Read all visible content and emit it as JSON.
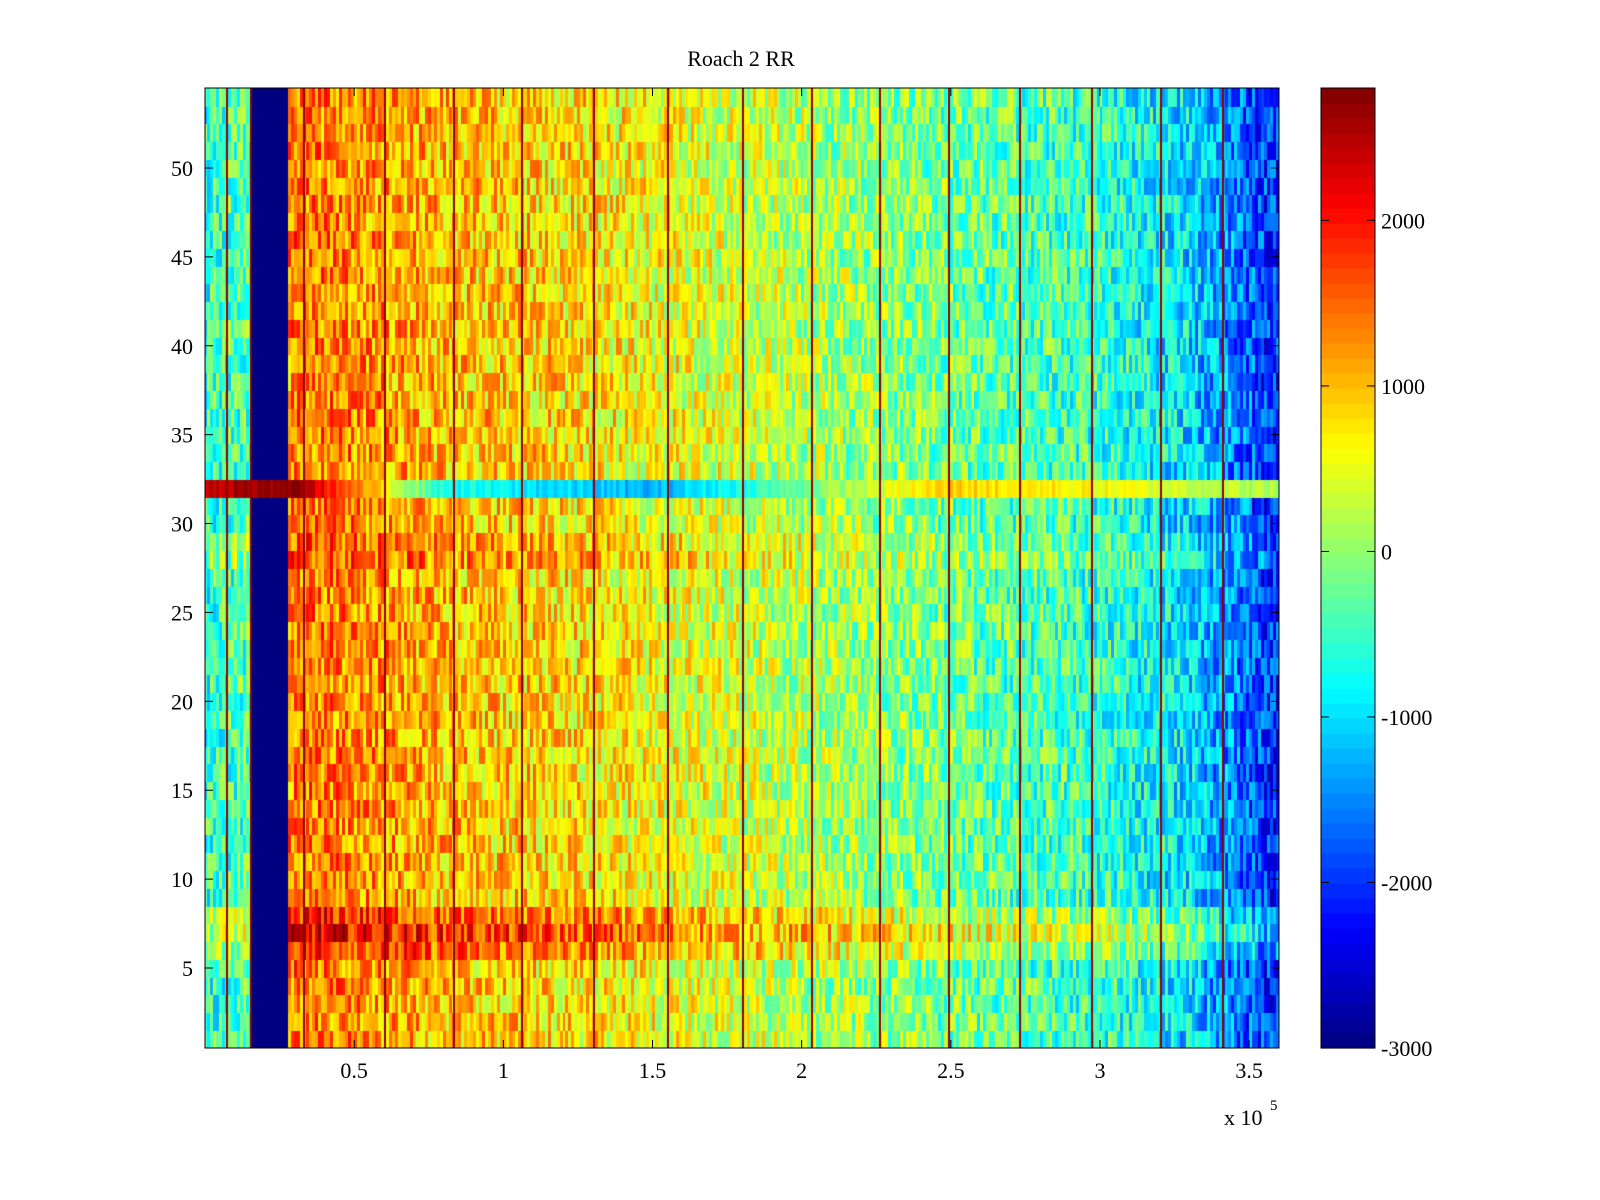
{
  "chart_data": {
    "type": "heatmap",
    "title": "Roach 2 RR",
    "xlabel": "",
    "ylabel": "",
    "x_scale_label": "x 10",
    "x_scale_exponent": "5",
    "x_multiplier": 100000,
    "xlim": [
      0,
      3.6
    ],
    "ylim": [
      0.5,
      54.5
    ],
    "rows": 54,
    "x_ticks": [
      0.5,
      1,
      1.5,
      2,
      2.5,
      3,
      3.5
    ],
    "x_tick_labels": [
      "0.5",
      "1",
      "1.5",
      "2",
      "2.5",
      "3",
      "3.5"
    ],
    "y_ticks": [
      5,
      10,
      15,
      20,
      25,
      30,
      35,
      40,
      45,
      50
    ],
    "y_tick_labels": [
      "5",
      "10",
      "15",
      "20",
      "25",
      "30",
      "35",
      "40",
      "45",
      "50"
    ],
    "colorbar": {
      "colormap": "jet",
      "clim": [
        -3000,
        2800
      ],
      "ticks": [
        -3000,
        -2000,
        -1000,
        0,
        1000,
        2000
      ],
      "tick_labels": [
        "-3000",
        "-2000",
        "-1000",
        "0",
        "1000",
        "2000"
      ]
    },
    "value_profile_by_x": [
      {
        "x": 0.0,
        "value": -600
      },
      {
        "x": 0.15,
        "value": -300
      },
      {
        "x": 0.3,
        "value": 1400
      },
      {
        "x": 0.5,
        "value": 1300
      },
      {
        "x": 0.8,
        "value": 1000
      },
      {
        "x": 1.2,
        "value": 800
      },
      {
        "x": 1.6,
        "value": 500
      },
      {
        "x": 2.0,
        "value": 200
      },
      {
        "x": 2.5,
        "value": -200
      },
      {
        "x": 3.0,
        "value": -500
      },
      {
        "x": 3.3,
        "value": -1000
      },
      {
        "x": 3.6,
        "value": -2100
      }
    ],
    "blank_band": {
      "x_start": 0.16,
      "x_end": 0.28,
      "value": -3000,
      "except_row": 32
    },
    "anomalous_rows": [
      {
        "row": 32,
        "description_values": [
          {
            "x": 0.0,
            "value": 2400
          },
          {
            "x": 0.3,
            "value": 2800
          },
          {
            "x": 0.8,
            "value": -700
          },
          {
            "x": 1.5,
            "value": -1300
          },
          {
            "x": 2.0,
            "value": -200
          },
          {
            "x": 2.5,
            "value": 900
          },
          {
            "x": 3.0,
            "value": 600
          },
          {
            "x": 3.6,
            "value": 100
          }
        ]
      },
      {
        "row": 6,
        "offset": 500
      },
      {
        "row": 7,
        "offset": 800
      },
      {
        "row": 8,
        "offset": 500
      },
      {
        "row": 28,
        "offset": 300
      },
      {
        "row": 29,
        "offset": 200
      }
    ],
    "vertical_stripe_x": [
      0.07,
      0.15,
      0.33,
      0.6,
      0.83,
      1.06,
      1.3,
      1.55,
      1.8,
      2.03,
      2.26,
      2.49,
      2.73,
      2.97,
      3.2,
      3.41
    ],
    "stripe_value": 2700
  }
}
